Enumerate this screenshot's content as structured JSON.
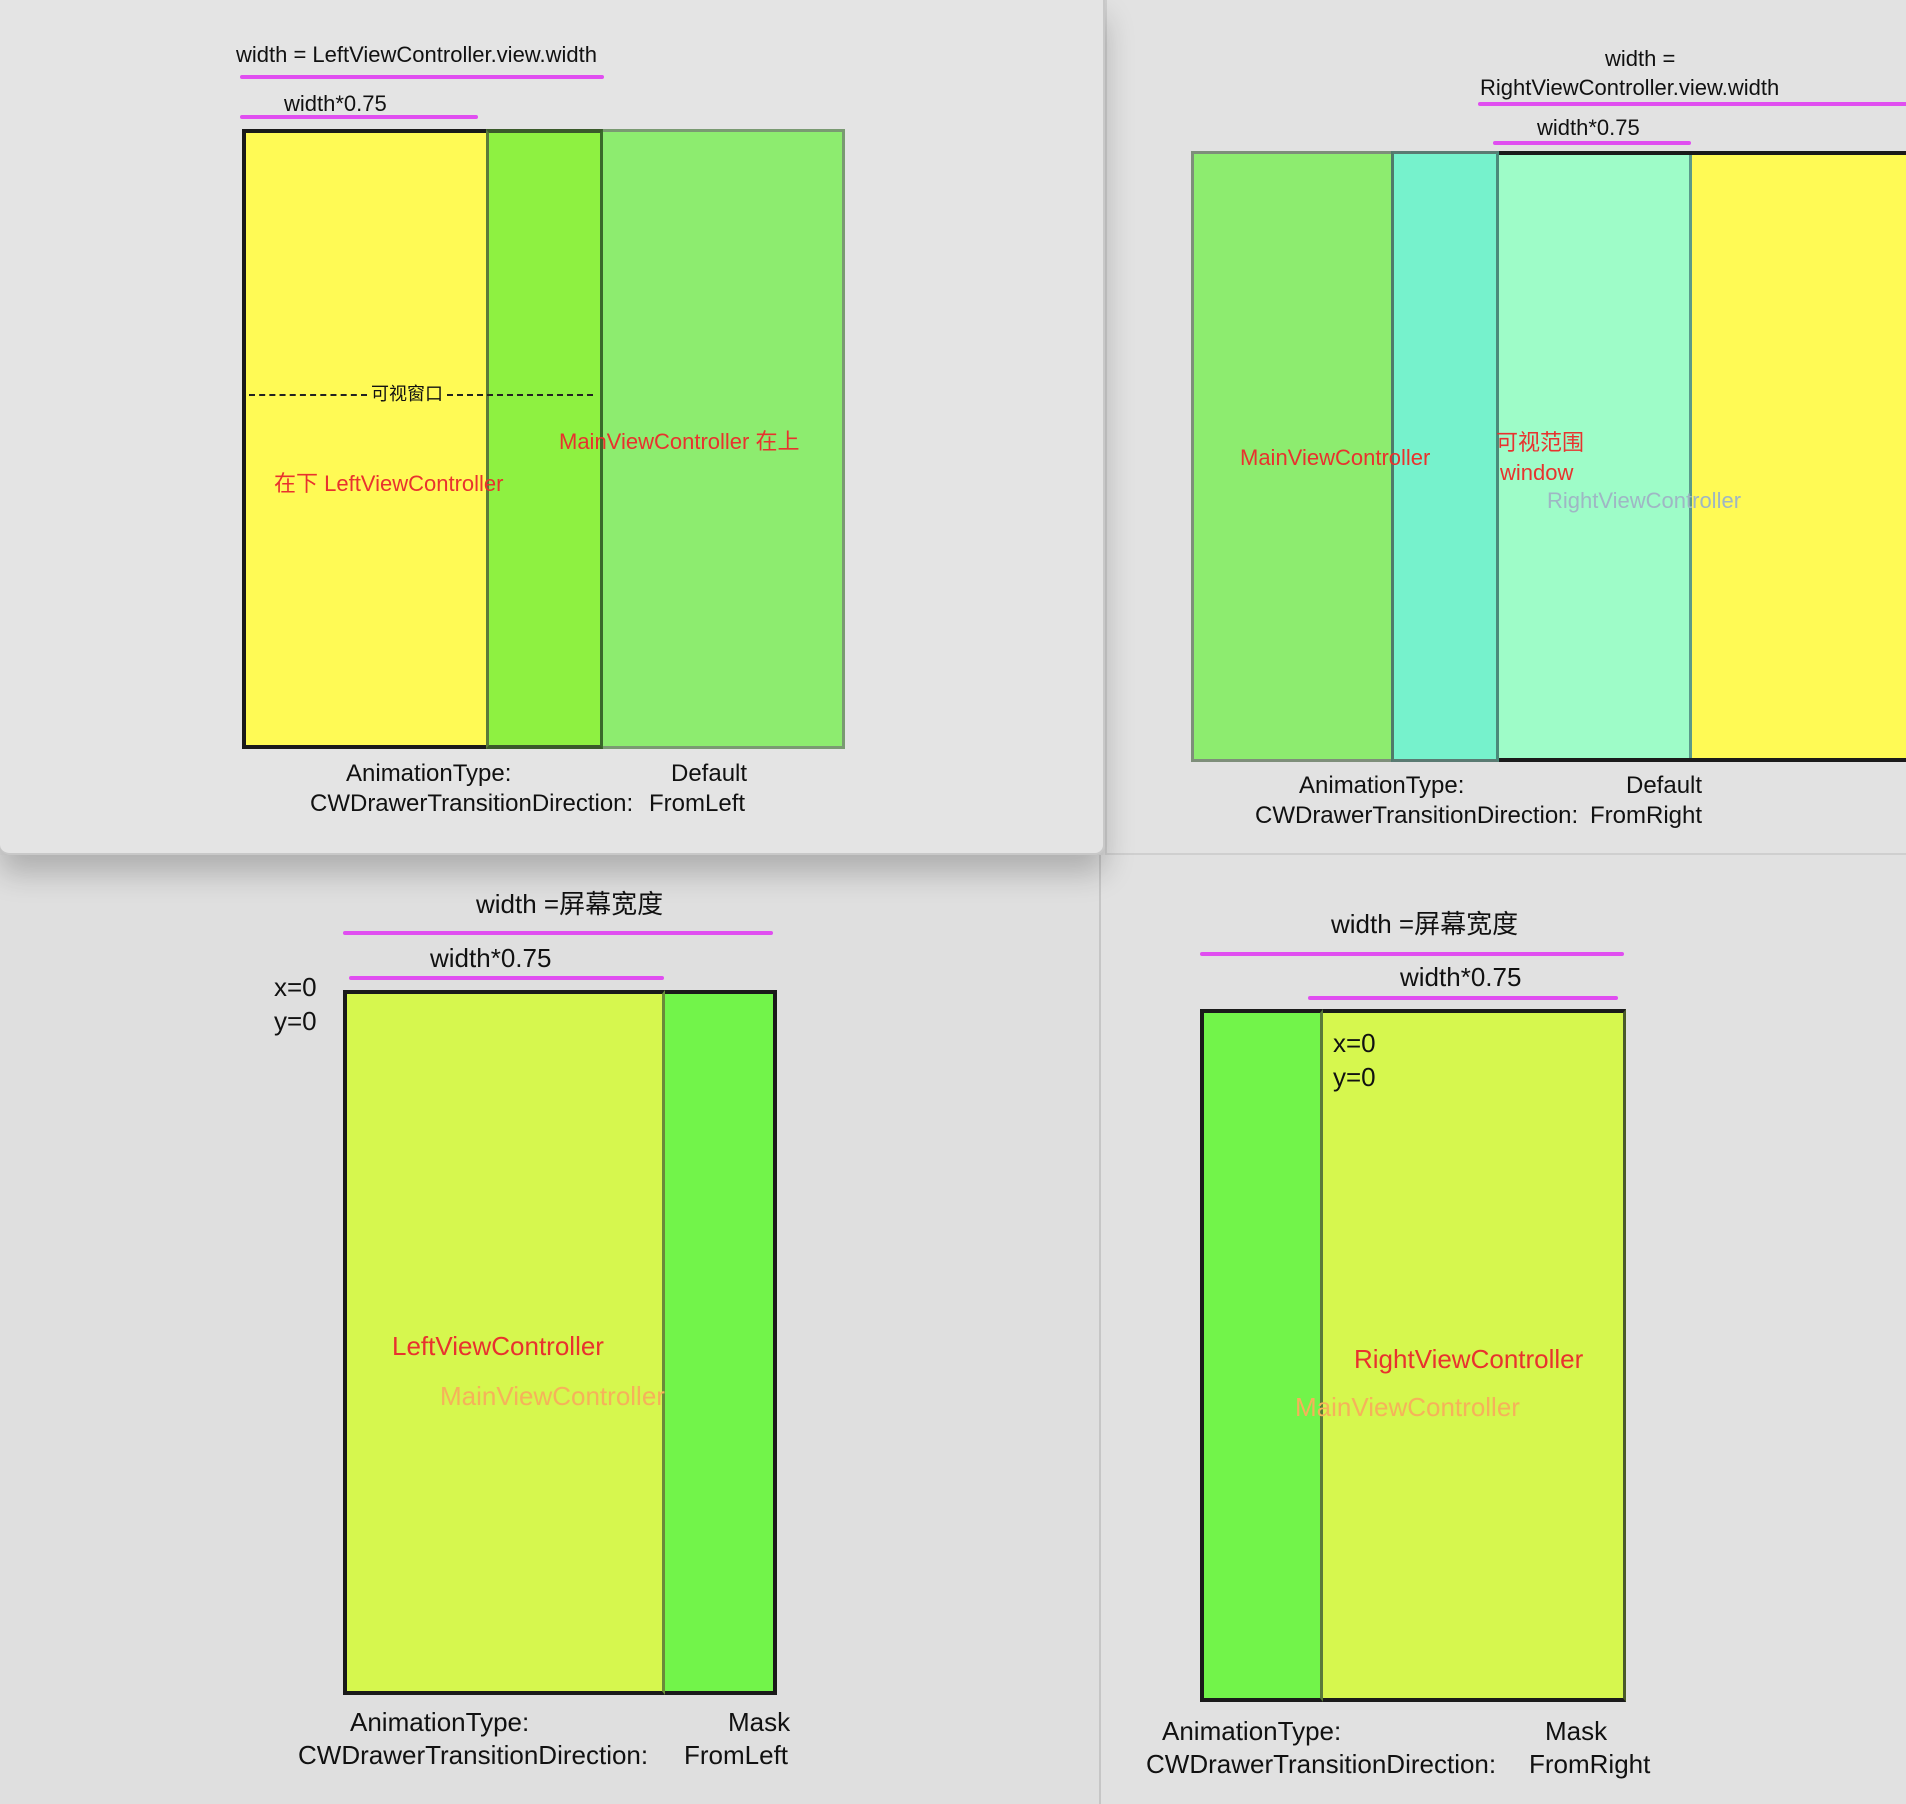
{
  "panels": {
    "top_left": {
      "width_label": "width = LeftViewController.view.width",
      "width_075_label": "width*0.75",
      "visible_window_label": "可视窗口",
      "main_label": "MainViewController  在上",
      "left_label": "在下  LeftViewController",
      "animation_type_label": "AnimationType:",
      "animation_type_value": "Default",
      "direction_label": "CWDrawerTransitionDirection:",
      "direction_value": "FromLeft"
    },
    "top_right": {
      "width_label_1": "width =",
      "width_label_2": "RightViewController.view.width",
      "width_075_label": "width*0.75",
      "main_label": "MainViewController",
      "visible_range_label": "可视范围",
      "window_label": "window",
      "right_label": "RightViewController",
      "animation_type_label": "AnimationType:",
      "animation_type_value": "Default",
      "direction_label": "CWDrawerTransitionDirection:",
      "direction_value": "FromRight"
    },
    "bottom_left": {
      "width_label": "width =屏幕宽度",
      "width_075_label": "width*0.75",
      "x_label": "x=0",
      "y_label": "y=0",
      "left_label": "LeftViewController",
      "main_label": "MainViewController",
      "animation_type_label": "AnimationType:",
      "animation_type_value": "Mask",
      "direction_label": "CWDrawerTransitionDirection:",
      "direction_value": "FromLeft"
    },
    "bottom_right": {
      "width_label": "width =屏幕宽度",
      "width_075_label": "width*0.75",
      "x_label": "x=0",
      "y_label": "y=0",
      "right_label": "RightViewController",
      "main_label": "MainViewController",
      "animation_type_label": "AnimationType:",
      "animation_type_value": "Mask",
      "direction_label": "CWDrawerTransitionDirection:",
      "direction_value": "FromRight"
    }
  },
  "colors": {
    "yellow": "#fffa55",
    "green_light": "#8dec6f",
    "green_bright": "#8ef141",
    "cyan": "#76f2cc",
    "mint": "#9efcc8",
    "lime": "#d6f74e",
    "green_mask": "#72f44a",
    "annotation_red": "#e8322e",
    "underline_magenta": "#e04ef0"
  }
}
